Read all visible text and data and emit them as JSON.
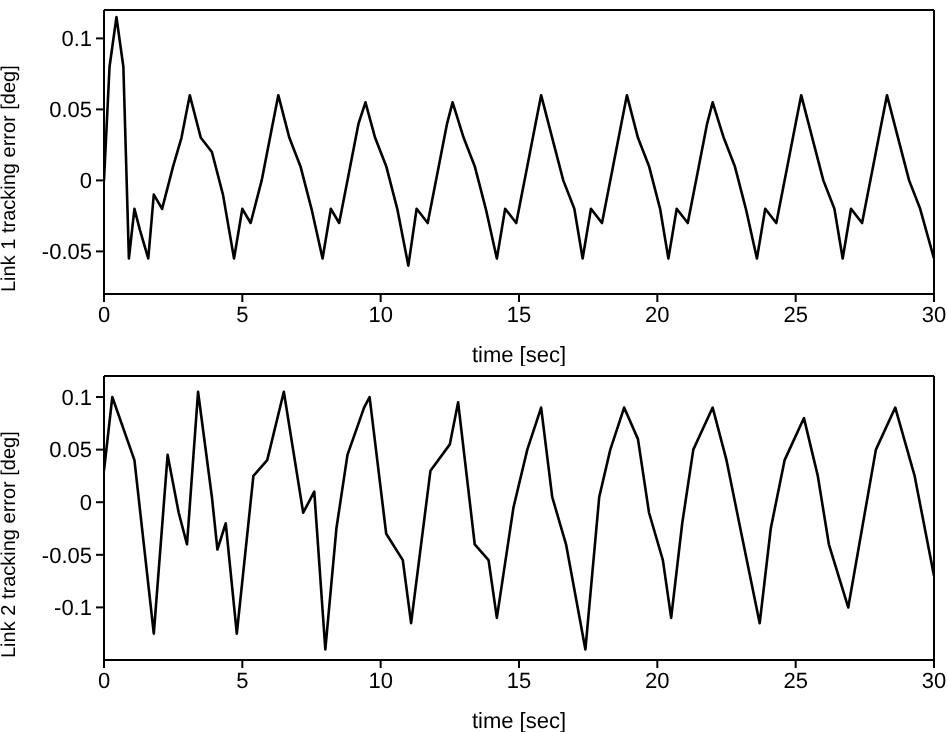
{
  "chart_data": [
    {
      "type": "line",
      "xlabel": "time [sec]",
      "ylabel": "Link 1 tracking error [deg]",
      "xlim": [
        0,
        30
      ],
      "xticks": [
        0,
        5,
        10,
        15,
        20,
        25,
        30
      ],
      "ylim": [
        -0.08,
        0.12
      ],
      "yticks": [
        -0.05,
        0,
        0.05,
        0.1
      ],
      "series": [
        {
          "color": "#000000",
          "x": [
            0,
            0.2,
            0.45,
            0.7,
            0.9,
            1.1,
            1.3,
            1.6,
            1.8,
            2.1,
            2.5,
            2.8,
            3.1,
            3.5,
            3.9,
            4.3,
            4.7,
            5.0,
            5.3,
            5.7,
            6.0,
            6.3,
            6.7,
            7.1,
            7.5,
            7.9,
            8.2,
            8.5,
            8.9,
            9.2,
            9.45,
            9.8,
            10.2,
            10.6,
            11.0,
            11.3,
            11.7,
            12.1,
            12.4,
            12.6,
            13.0,
            13.4,
            13.8,
            14.2,
            14.5,
            14.9,
            15.3,
            15.6,
            15.8,
            16.2,
            16.6,
            17.0,
            17.3,
            17.6,
            18.0,
            18.4,
            18.7,
            18.9,
            19.3,
            19.7,
            20.1,
            20.4,
            20.7,
            21.1,
            21.5,
            21.8,
            22.0,
            22.4,
            22.8,
            23.2,
            23.6,
            23.9,
            24.3,
            24.7,
            25.0,
            25.2,
            25.6,
            26.0,
            26.4,
            26.7,
            27.0,
            27.4,
            27.8,
            28.1,
            28.3,
            28.7,
            29.1,
            29.5,
            30
          ],
          "values": [
            0,
            0.08,
            0.115,
            0.08,
            -0.055,
            -0.02,
            -0.035,
            -0.055,
            -0.01,
            -0.02,
            0.01,
            0.03,
            0.06,
            0.03,
            0.02,
            -0.01,
            -0.055,
            -0.02,
            -0.03,
            0.0,
            0.03,
            0.06,
            0.03,
            0.01,
            -0.02,
            -0.055,
            -0.02,
            -0.03,
            0.01,
            0.04,
            0.055,
            0.03,
            0.01,
            -0.02,
            -0.06,
            -0.02,
            -0.03,
            0.01,
            0.04,
            0.055,
            0.03,
            0.01,
            -0.02,
            -0.055,
            -0.02,
            -0.03,
            0.01,
            0.04,
            0.06,
            0.03,
            0.0,
            -0.02,
            -0.055,
            -0.02,
            -0.03,
            0.01,
            0.04,
            0.06,
            0.03,
            0.01,
            -0.02,
            -0.055,
            -0.02,
            -0.03,
            0.01,
            0.04,
            0.055,
            0.03,
            0.01,
            -0.02,
            -0.055,
            -0.02,
            -0.03,
            0.01,
            0.04,
            0.06,
            0.03,
            0.0,
            -0.02,
            -0.055,
            -0.02,
            -0.03,
            0.01,
            0.04,
            0.06,
            0.03,
            0.0,
            -0.02,
            -0.055
          ]
        }
      ]
    },
    {
      "type": "line",
      "xlabel": "time [sec]",
      "ylabel": "Link 2 tracking error [deg]",
      "xlim": [
        0,
        30
      ],
      "xticks": [
        0,
        5,
        10,
        15,
        20,
        25,
        30
      ],
      "ylim": [
        -0.15,
        0.12
      ],
      "yticks": [
        -0.1,
        -0.05,
        0,
        0.05,
        0.1
      ],
      "series": [
        {
          "color": "#000000",
          "x": [
            0,
            0.3,
            1.1,
            1.8,
            2.3,
            2.7,
            3.0,
            3.4,
            3.9,
            4.1,
            4.4,
            4.8,
            5.4,
            5.9,
            6.5,
            7.2,
            7.6,
            8.0,
            8.4,
            8.8,
            9.4,
            9.6,
            10.2,
            10.8,
            11.1,
            11.8,
            12.5,
            12.8,
            13.4,
            13.9,
            14.2,
            14.8,
            15.3,
            15.8,
            16.2,
            16.7,
            17.4,
            17.9,
            18.3,
            18.8,
            19.3,
            19.7,
            20.2,
            20.5,
            20.9,
            21.3,
            22.0,
            22.5,
            23.0,
            23.7,
            24.1,
            24.6,
            25.3,
            25.8,
            26.2,
            26.9,
            27.4,
            27.9,
            28.6,
            29.3,
            30
          ],
          "values": [
            0.03,
            0.1,
            0.04,
            -0.125,
            0.045,
            -0.01,
            -0.04,
            0.105,
            0.005,
            -0.045,
            -0.02,
            -0.125,
            0.025,
            0.04,
            0.105,
            -0.01,
            0.01,
            -0.14,
            -0.025,
            0.045,
            0.09,
            0.1,
            -0.03,
            -0.055,
            -0.115,
            0.03,
            0.055,
            0.095,
            -0.04,
            -0.055,
            -0.11,
            -0.005,
            0.05,
            0.09,
            0.005,
            -0.04,
            -0.14,
            0.005,
            0.05,
            0.09,
            0.06,
            -0.01,
            -0.055,
            -0.11,
            -0.02,
            0.05,
            0.09,
            0.04,
            -0.025,
            -0.115,
            -0.025,
            0.04,
            0.08,
            0.025,
            -0.04,
            -0.1,
            -0.025,
            0.05,
            0.09,
            0.025,
            -0.07
          ]
        }
      ]
    }
  ]
}
